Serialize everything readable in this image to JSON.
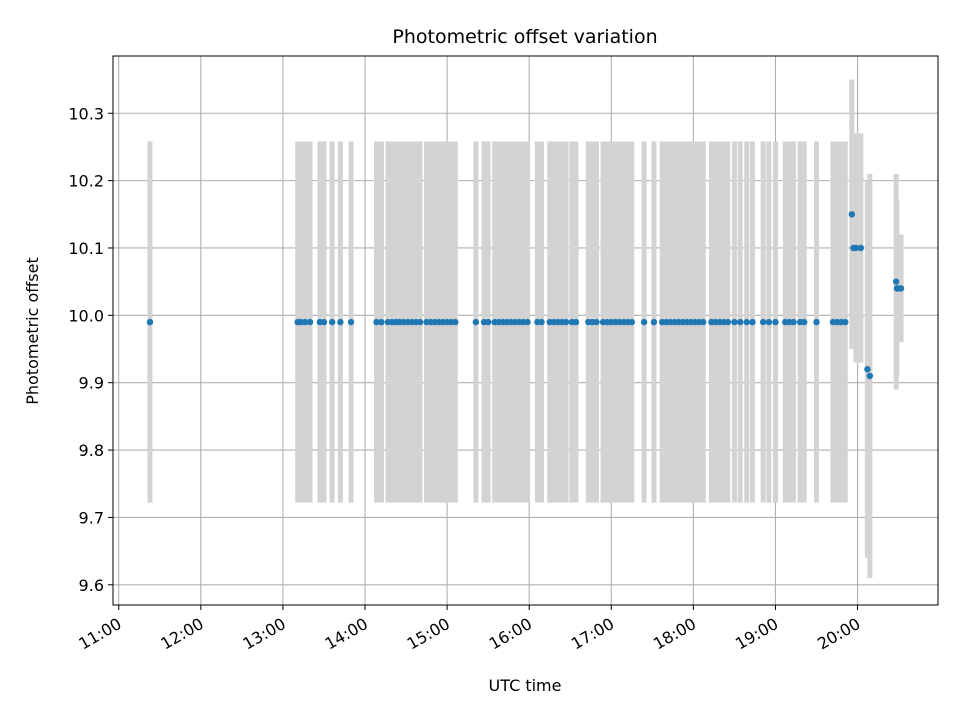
{
  "chart_data": {
    "type": "scatter",
    "title": "Photometric offset variation",
    "xlabel": "UTC time",
    "ylabel": "Photometric offset",
    "x_unit": "hours UTC",
    "xlim": [
      10.93,
      20.98
    ],
    "ylim": [
      9.57,
      10.385
    ],
    "x_ticks": [
      {
        "value": 11,
        "label": "11:00"
      },
      {
        "value": 12,
        "label": "12:00"
      },
      {
        "value": 13,
        "label": "13:00"
      },
      {
        "value": 14,
        "label": "14:00"
      },
      {
        "value": 15,
        "label": "15:00"
      },
      {
        "value": 16,
        "label": "16:00"
      },
      {
        "value": 17,
        "label": "17:00"
      },
      {
        "value": 18,
        "label": "18:00"
      },
      {
        "value": 19,
        "label": "19:00"
      },
      {
        "value": 20,
        "label": "20:00"
      }
    ],
    "y_ticks": [
      {
        "value": 9.6,
        "label": "9.6"
      },
      {
        "value": 9.7,
        "label": "9.7"
      },
      {
        "value": 9.8,
        "label": "9.8"
      },
      {
        "value": 9.9,
        "label": "9.9"
      },
      {
        "value": 10.0,
        "label": "10.0"
      },
      {
        "value": 10.1,
        "label": "10.1"
      },
      {
        "value": 10.2,
        "label": "10.2"
      },
      {
        "value": 10.3,
        "label": "10.3"
      }
    ],
    "grid": true,
    "point_color": "#1f77b4",
    "errorbar_color": "#d3d3d3",
    "default_y": 9.99,
    "default_err": 0.268,
    "x": [
      11.38,
      13.18,
      13.22,
      13.27,
      13.33,
      13.45,
      13.5,
      13.6,
      13.7,
      13.83,
      14.14,
      14.2,
      14.28,
      14.33,
      14.38,
      14.42,
      14.47,
      14.52,
      14.57,
      14.62,
      14.67,
      14.75,
      14.8,
      14.85,
      14.9,
      14.95,
      15.0,
      15.05,
      15.1,
      15.35,
      15.45,
      15.5,
      15.58,
      15.63,
      15.68,
      15.73,
      15.78,
      15.83,
      15.88,
      15.93,
      15.98,
      16.1,
      16.15,
      16.25,
      16.3,
      16.35,
      16.4,
      16.45,
      16.52,
      16.57,
      16.72,
      16.77,
      16.82,
      16.9,
      16.95,
      17.0,
      17.05,
      17.1,
      17.15,
      17.2,
      17.25,
      17.4,
      17.52,
      17.62,
      17.67,
      17.72,
      17.77,
      17.82,
      17.87,
      17.92,
      17.97,
      18.02,
      18.07,
      18.12,
      18.22,
      18.27,
      18.32,
      18.37,
      18.42,
      18.5,
      18.57,
      18.65,
      18.72,
      18.85,
      18.92,
      19.0,
      19.12,
      19.17,
      19.22,
      19.3,
      19.35,
      19.5,
      19.7,
      19.75,
      19.8,
      19.85,
      19.93,
      19.95,
      19.98,
      20.04,
      20.12,
      20.15,
      20.47,
      20.48,
      20.5,
      20.53
    ],
    "y": [
      9.99,
      9.99,
      9.99,
      9.99,
      9.99,
      9.99,
      9.99,
      9.99,
      9.99,
      9.99,
      9.99,
      9.99,
      9.99,
      9.99,
      9.99,
      9.99,
      9.99,
      9.99,
      9.99,
      9.99,
      9.99,
      9.99,
      9.99,
      9.99,
      9.99,
      9.99,
      9.99,
      9.99,
      9.99,
      9.99,
      9.99,
      9.99,
      9.99,
      9.99,
      9.99,
      9.99,
      9.99,
      9.99,
      9.99,
      9.99,
      9.99,
      9.99,
      9.99,
      9.99,
      9.99,
      9.99,
      9.99,
      9.99,
      9.99,
      9.99,
      9.99,
      9.99,
      9.99,
      9.99,
      9.99,
      9.99,
      9.99,
      9.99,
      9.99,
      9.99,
      9.99,
      9.99,
      9.99,
      9.99,
      9.99,
      9.99,
      9.99,
      9.99,
      9.99,
      9.99,
      9.99,
      9.99,
      9.99,
      9.99,
      9.99,
      9.99,
      9.99,
      9.99,
      9.99,
      9.99,
      9.99,
      9.99,
      9.99,
      9.99,
      9.99,
      9.99,
      9.99,
      9.99,
      9.99,
      9.99,
      9.99,
      9.99,
      9.99,
      9.99,
      9.99,
      9.99,
      10.15,
      10.1,
      10.1,
      10.1,
      9.92,
      9.91,
      10.05,
      10.04,
      10.04,
      10.04
    ],
    "yerr": [
      0.268,
      0.268,
      0.268,
      0.268,
      0.268,
      0.268,
      0.268,
      0.268,
      0.268,
      0.268,
      0.268,
      0.268,
      0.268,
      0.268,
      0.268,
      0.268,
      0.268,
      0.268,
      0.268,
      0.268,
      0.268,
      0.268,
      0.268,
      0.268,
      0.268,
      0.268,
      0.268,
      0.268,
      0.268,
      0.268,
      0.268,
      0.268,
      0.268,
      0.268,
      0.268,
      0.268,
      0.268,
      0.268,
      0.268,
      0.268,
      0.268,
      0.268,
      0.268,
      0.268,
      0.268,
      0.268,
      0.268,
      0.268,
      0.268,
      0.268,
      0.268,
      0.268,
      0.268,
      0.268,
      0.268,
      0.268,
      0.268,
      0.268,
      0.268,
      0.268,
      0.268,
      0.268,
      0.268,
      0.268,
      0.268,
      0.268,
      0.268,
      0.268,
      0.268,
      0.268,
      0.268,
      0.268,
      0.268,
      0.268,
      0.268,
      0.268,
      0.268,
      0.268,
      0.268,
      0.268,
      0.268,
      0.268,
      0.268,
      0.268,
      0.268,
      0.268,
      0.268,
      0.268,
      0.268,
      0.268,
      0.268,
      0.268,
      0.268,
      0.268,
      0.268,
      0.268,
      0.2,
      0.15,
      0.17,
      0.17,
      0.28,
      0.3,
      0.16,
      0.13,
      0.08,
      0.08
    ]
  }
}
